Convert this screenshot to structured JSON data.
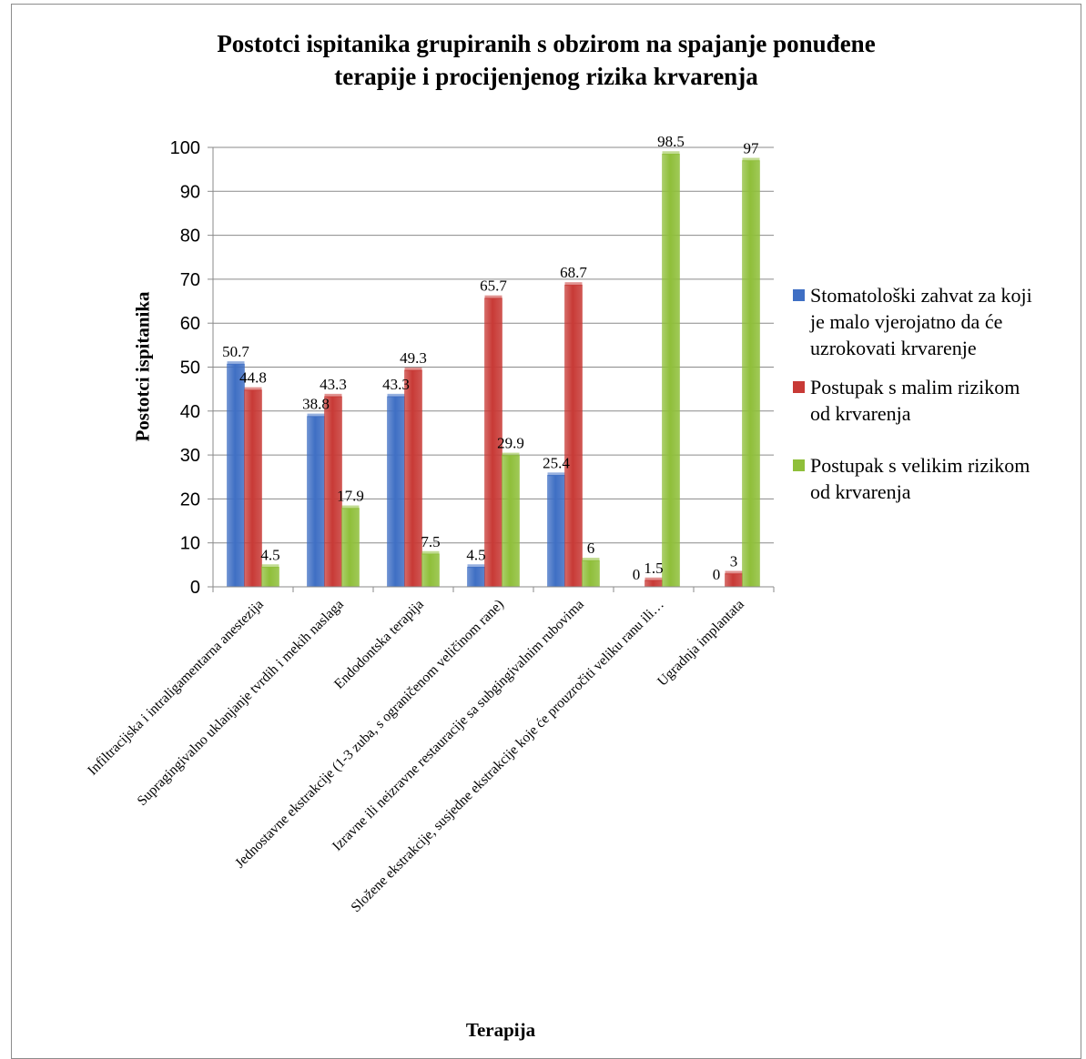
{
  "chart_data": {
    "type": "bar",
    "title_lines": [
      "Postotci ispitanika grupiranih s obzirom na spajanje ponuđene",
      "terapije i procijenjenog rizika krvarenja"
    ],
    "xlabel": "Terapija",
    "ylabel": "Postotci ispitanika",
    "ylim": [
      0,
      100
    ],
    "yticks": [
      0,
      10,
      20,
      30,
      40,
      50,
      60,
      70,
      80,
      90,
      100
    ],
    "grid": true,
    "legend_position": "right",
    "categories": [
      "Infiltracijska i intraligamentarna anestezija",
      "Supragingivalno uklanjanje tvrdih i mekih naslaga",
      "Endodontska terapija",
      "Jednostavne ekstrakcije (1-3 zuba, s ograničenom veličinom rane)",
      "Izravne ili neizravne restauracije sa subgingivalnim rubovima",
      "Složene ekstrakcije, susjedne ekstrakcije koje će prouzročiti veliku ranu ili…",
      "Ugradnja implantata"
    ],
    "series": [
      {
        "name": "Stomatološki zahvat za koji je malo vjerojatno da će uzrokovati krvarenje",
        "legend_lines": [
          "Stomatološki zahvat za koji",
          "je malo vjerojatno da će",
          "uzrokovati krvarenje"
        ],
        "color": "#3f6fc4",
        "values": [
          50.7,
          38.8,
          43.3,
          4.5,
          25.4,
          0,
          0
        ],
        "labels": [
          "50.7",
          "38.8",
          "43.3",
          "4.5",
          "25.4",
          "0",
          "0"
        ]
      },
      {
        "name": "Postupak s malim rizikom od krvarenja",
        "legend_lines": [
          "Postupak s malim rizikom",
          "od krvarenja"
        ],
        "color": "#c83a36",
        "values": [
          44.8,
          43.3,
          49.3,
          65.7,
          68.7,
          1.5,
          3
        ],
        "labels": [
          "44.8",
          "43.3",
          "49.3",
          "65.7",
          "68.7",
          "1.5",
          "3"
        ]
      },
      {
        "name": "Postupak s velikim rizikom od krvarenja",
        "legend_lines": [
          "Postupak s velikim rizikom",
          "od krvarenja"
        ],
        "color": "#8fbf3a",
        "values": [
          4.5,
          17.9,
          7.5,
          29.9,
          6,
          98.5,
          97
        ],
        "labels": [
          "4.5",
          "17.9",
          "7.5",
          "29.9",
          "6",
          "98.5",
          "97"
        ]
      }
    ]
  }
}
